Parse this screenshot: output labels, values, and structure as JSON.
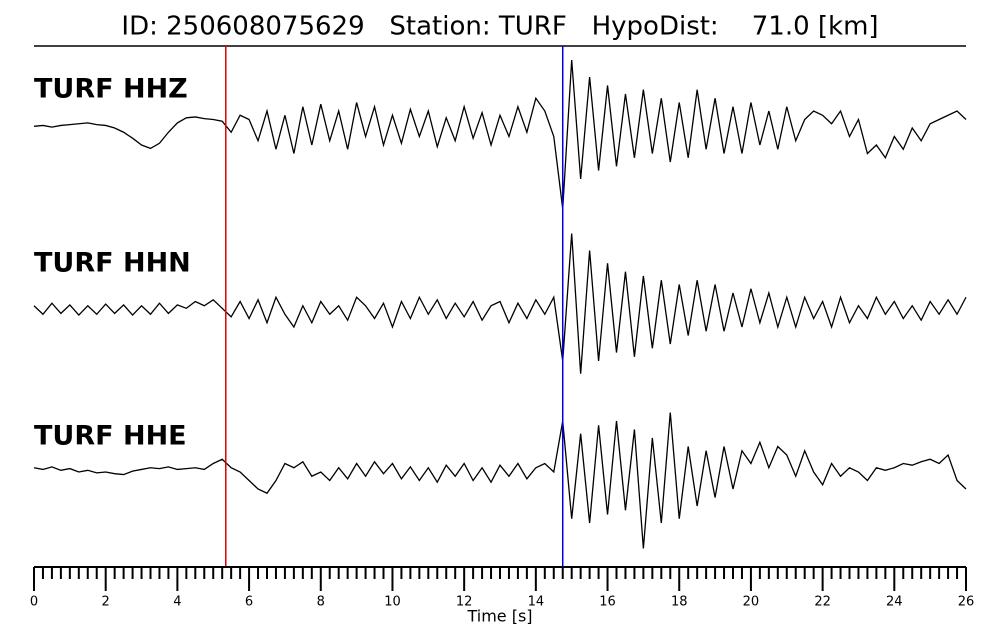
{
  "chart_data": {
    "type": "line",
    "title": "ID: 250608075629   Station: TURF   HypoDist:    71.0 [km]",
    "xlabel": "Time [s]",
    "xlim": [
      0,
      26
    ],
    "xticks": [
      0,
      2,
      4,
      6,
      8,
      10,
      12,
      14,
      16,
      18,
      20,
      22,
      24,
      26
    ],
    "xminorticks": [
      0.25,
      0.5,
      0.75,
      1,
      1.25,
      1.5,
      1.75,
      2.25,
      2.5,
      2.75,
      3,
      3.25,
      3.5,
      3.75,
      4.25,
      4.5,
      4.75,
      5,
      5.25,
      5.5,
      5.75,
      6.25,
      6.5,
      6.75,
      7,
      7.25,
      7.5,
      7.75,
      8.25,
      8.5,
      8.75,
      9,
      9.25,
      9.5,
      9.75,
      10.25,
      10.5,
      10.75,
      11,
      11.25,
      11.5,
      11.75,
      12.25,
      12.5,
      12.75,
      13,
      13.25,
      13.5,
      13.75,
      14.25,
      14.5,
      14.75,
      15,
      15.25,
      15.5,
      15.75,
      16.25,
      16.5,
      16.75,
      17,
      17.25,
      17.5,
      17.75,
      18.25,
      18.5,
      18.75,
      19,
      19.25,
      19.5,
      19.75,
      20.25,
      20.5,
      20.75,
      21,
      21.25,
      21.5,
      21.75,
      22.25,
      22.5,
      22.75,
      23,
      23.25,
      23.5,
      23.75,
      24.25,
      24.5,
      24.75,
      25,
      25.25,
      25.5,
      25.75
    ],
    "ylim": [
      -1,
      1
    ],
    "label_color": "#4c9a00",
    "markers": [
      {
        "x": 5.35,
        "color": "#e00000"
      },
      {
        "x": 14.75,
        "color": "#0000e0"
      }
    ],
    "x": [
      0,
      0.25,
      0.5,
      0.75,
      1,
      1.25,
      1.5,
      1.75,
      2,
      2.25,
      2.5,
      2.75,
      3,
      3.25,
      3.5,
      3.75,
      4,
      4.25,
      4.5,
      4.75,
      5,
      5.25,
      5.5,
      5.75,
      6,
      6.25,
      6.5,
      6.75,
      7,
      7.25,
      7.5,
      7.75,
      8,
      8.25,
      8.5,
      8.75,
      9,
      9.25,
      9.5,
      9.75,
      10,
      10.25,
      10.5,
      10.75,
      11,
      11.25,
      11.5,
      11.75,
      12,
      12.25,
      12.5,
      12.75,
      13,
      13.25,
      13.5,
      13.75,
      14,
      14.25,
      14.5,
      14.75,
      15,
      15.25,
      15.5,
      15.75,
      16,
      16.25,
      16.5,
      16.75,
      17,
      17.25,
      17.5,
      17.75,
      18,
      18.25,
      18.5,
      18.75,
      19,
      19.25,
      19.5,
      19.75,
      20,
      20.25,
      20.5,
      20.75,
      21,
      21.25,
      21.5,
      21.75,
      22,
      22.25,
      22.5,
      22.75,
      23,
      23.25,
      23.5,
      23.75,
      24,
      24.25,
      24.5,
      24.75,
      25,
      25.25,
      25.5,
      25.75,
      26
    ],
    "series": [
      {
        "name": "TURF HHZ",
        "color": "#000000",
        "values": [
          0.02,
          0.03,
          0.01,
          0.03,
          0.04,
          0.05,
          0.06,
          0.04,
          0.03,
          0.0,
          -0.05,
          -0.12,
          -0.2,
          -0.24,
          -0.18,
          -0.05,
          0.06,
          0.12,
          0.13,
          0.11,
          0.1,
          0.08,
          -0.05,
          0.15,
          0.1,
          -0.15,
          0.2,
          -0.25,
          0.15,
          -0.3,
          0.25,
          -0.2,
          0.28,
          -0.15,
          0.2,
          -0.25,
          0.3,
          -0.1,
          0.25,
          -0.2,
          0.15,
          -0.18,
          0.22,
          -0.1,
          0.2,
          -0.22,
          0.12,
          -0.15,
          0.25,
          -0.12,
          0.18,
          -0.2,
          0.15,
          -0.1,
          0.25,
          -0.05,
          0.35,
          0.2,
          -0.1,
          -0.95,
          0.8,
          -0.6,
          0.6,
          -0.5,
          0.5,
          -0.45,
          0.4,
          -0.35,
          0.45,
          -0.3,
          0.35,
          -0.4,
          0.3,
          -0.35,
          0.45,
          -0.25,
          0.35,
          -0.3,
          0.25,
          -0.3,
          0.3,
          -0.2,
          0.2,
          -0.25,
          0.25,
          -0.15,
          0.1,
          0.2,
          0.15,
          0.05,
          0.2,
          -0.1,
          0.1,
          -0.3,
          -0.2,
          -0.35,
          -0.1,
          -0.25,
          0.0,
          -0.15,
          0.05,
          0.1,
          0.15,
          0.2,
          0.1
        ]
      },
      {
        "name": "TURF HHN",
        "color": "#000000",
        "values": [
          0.05,
          -0.05,
          0.08,
          -0.04,
          0.06,
          -0.06,
          0.05,
          -0.05,
          0.07,
          -0.04,
          0.06,
          -0.06,
          0.05,
          -0.05,
          0.08,
          -0.04,
          0.06,
          0.02,
          0.1,
          0.05,
          0.12,
          0.02,
          -0.08,
          0.1,
          -0.1,
          0.12,
          -0.15,
          0.15,
          -0.05,
          -0.2,
          0.05,
          -0.15,
          0.1,
          -0.05,
          0.05,
          -0.12,
          0.15,
          0.05,
          -0.1,
          0.08,
          -0.2,
          0.1,
          -0.1,
          0.15,
          -0.05,
          0.12,
          -0.1,
          0.08,
          -0.08,
          0.1,
          -0.12,
          0.05,
          0.1,
          -0.15,
          0.08,
          -0.1,
          0.12,
          -0.05,
          0.15,
          -0.6,
          0.9,
          -0.75,
          0.7,
          -0.6,
          0.55,
          -0.5,
          0.45,
          -0.55,
          0.4,
          -0.45,
          0.35,
          -0.4,
          0.3,
          -0.3,
          0.35,
          -0.25,
          0.3,
          -0.25,
          0.2,
          -0.2,
          0.25,
          -0.15,
          0.2,
          -0.2,
          0.15,
          -0.2,
          0.15,
          -0.1,
          0.1,
          -0.2,
          0.15,
          -0.15,
          0.05,
          -0.1,
          0.15,
          -0.05,
          0.1,
          -0.1,
          0.05,
          -0.12,
          0.1,
          -0.05,
          0.12,
          -0.05,
          0.15
        ]
      },
      {
        "name": "TURF HHE",
        "color": "#000000",
        "values": [
          0.05,
          0.03,
          0.06,
          0.02,
          0.04,
          0.0,
          0.02,
          -0.01,
          0.0,
          -0.02,
          -0.03,
          0.01,
          0.03,
          0.05,
          0.04,
          0.06,
          0.03,
          0.04,
          0.05,
          0.03,
          0.1,
          0.15,
          0.05,
          0.0,
          -0.1,
          -0.2,
          -0.25,
          -0.1,
          0.1,
          0.05,
          0.12,
          -0.05,
          0.0,
          -0.1,
          0.05,
          -0.08,
          0.1,
          -0.05,
          0.12,
          -0.02,
          0.1,
          -0.08,
          0.06,
          -0.1,
          0.05,
          -0.12,
          0.08,
          -0.05,
          0.1,
          -0.1,
          0.05,
          -0.12,
          0.08,
          -0.05,
          0.1,
          -0.08,
          0.05,
          0.1,
          0.0,
          0.6,
          -0.55,
          0.45,
          -0.6,
          0.55,
          -0.5,
          0.6,
          -0.45,
          0.5,
          -0.9,
          0.4,
          -0.6,
          0.7,
          -0.55,
          0.3,
          -0.4,
          0.25,
          -0.3,
          0.3,
          -0.2,
          0.25,
          0.1,
          0.35,
          0.05,
          0.3,
          0.2,
          -0.05,
          0.25,
          0.0,
          -0.15,
          0.1,
          -0.05,
          0.05,
          0.0,
          -0.1,
          0.05,
          0.02,
          0.05,
          0.1,
          0.08,
          0.12,
          0.15,
          0.1,
          0.2,
          -0.1,
          -0.2
        ]
      }
    ]
  }
}
